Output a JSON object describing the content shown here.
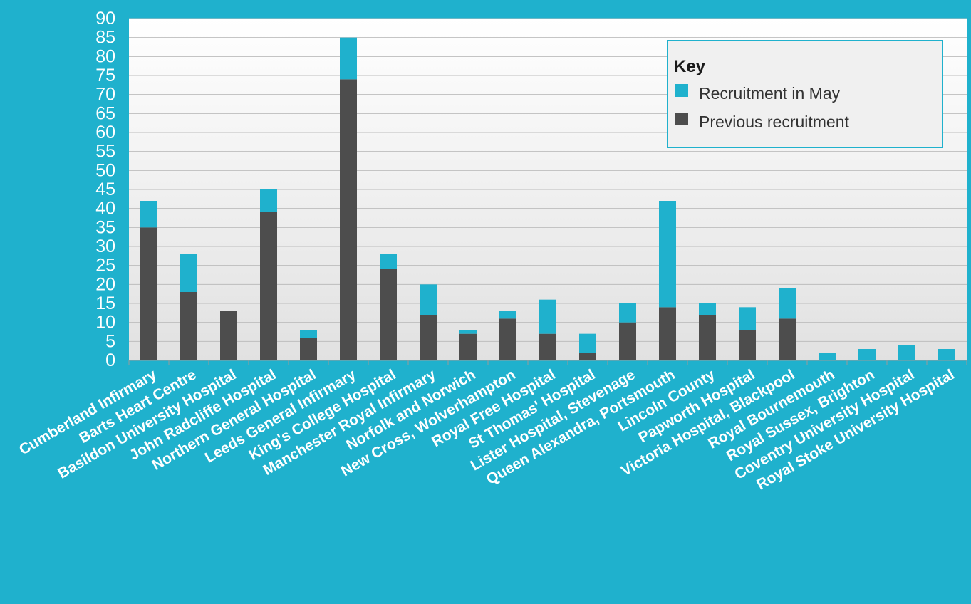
{
  "chart_data": {
    "type": "bar",
    "stacked": true,
    "categories": [
      "Cumberland Infirmary",
      "Barts Heart Centre",
      "Basildon University Hospital",
      "John Radcliffe Hospital",
      "Northern General Hospital",
      "Leeds General Infirmary",
      "King's College Hospital",
      "Manchester Royal Infirmary",
      "Norfolk and Norwich",
      "New Cross, Wolverhampton",
      "Royal Free Hospital",
      "St Thomas' Hospital",
      "Lister Hospital, Stevenage",
      "Queen Alexandra, Portsmouth",
      "Lincoln County",
      "Papworth Hospital",
      "Victoria Hospital, Blackpool",
      "Royal Bournemouth",
      "Royal Sussex, Brighton",
      "Coventry University Hospital",
      "Royal Stoke University Hospital"
    ],
    "series": [
      {
        "name": "Previous recruitment",
        "color": "#4d4d4d",
        "values": [
          35,
          18,
          13,
          39,
          6,
          74,
          24,
          12,
          7,
          11,
          7,
          2,
          10,
          14,
          12,
          8,
          11,
          0,
          0,
          0,
          0
        ]
      },
      {
        "name": "Recruitment in May",
        "color": "#1fb1cd",
        "values": [
          7,
          10,
          0,
          6,
          2,
          11,
          4,
          8,
          1,
          2,
          9,
          5,
          5,
          28,
          3,
          6,
          8,
          2,
          3,
          4,
          3
        ]
      }
    ],
    "ylim": [
      0,
      90
    ],
    "yticks": [
      0,
      5,
      10,
      15,
      20,
      25,
      30,
      35,
      40,
      45,
      50,
      55,
      60,
      65,
      70,
      75,
      80,
      85,
      90
    ],
    "grid": true,
    "legend": {
      "title": "Key",
      "position": "top-right",
      "entries": [
        "Recruitment in May",
        "Previous recruitment"
      ]
    },
    "xlabel": "",
    "ylabel": "",
    "title": ""
  },
  "colors": {
    "background": "#1fb1cd",
    "plot_bg_top": "#ffffff",
    "plot_bg_bottom": "#e2e2e2",
    "gridline": "#bdbdbd"
  }
}
